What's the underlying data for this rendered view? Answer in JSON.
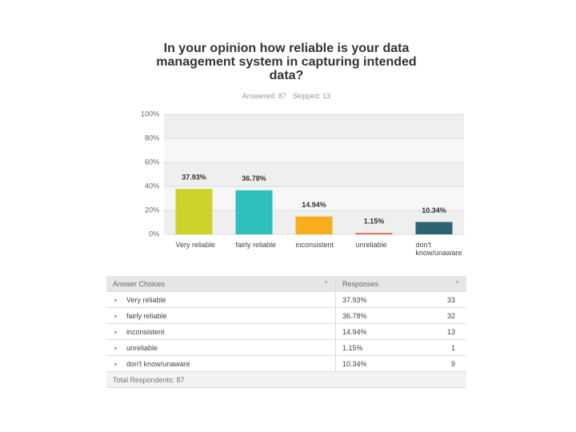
{
  "chart_data": {
    "type": "bar",
    "title": "In your opinion how reliable is your data management system in capturing intended data?",
    "subtitle": [
      "Answered: 87",
      "Skipped: 13"
    ],
    "categories": [
      "Very reliable",
      "fairly reliable",
      "inconsistent",
      "unreliable",
      "don't know/unaware"
    ],
    "values": [
      37.93,
      36.78,
      14.94,
      1.15,
      10.34
    ],
    "value_labels": [
      "37.93%",
      "36.78%",
      "14.94%",
      "1.15%",
      "10.34%"
    ],
    "colors": [
      "#cdd22b",
      "#2fbfbf",
      "#f6ae1f",
      "#e0634a",
      "#2d6272"
    ],
    "ylim": [
      0,
      100
    ],
    "yticks": [
      {
        "value": 0,
        "label": "0%"
      },
      {
        "value": 20,
        "label": "20%"
      },
      {
        "value": 40,
        "label": "40%"
      },
      {
        "value": 60,
        "label": "60%"
      },
      {
        "value": 80,
        "label": "80%"
      },
      {
        "value": 100,
        "label": "100%"
      }
    ],
    "grid": true
  },
  "table": {
    "header": [
      "Answer Choices",
      "Responses"
    ],
    "rows": [
      [
        "Very reliable",
        "37.93%",
        33
      ],
      [
        "fairly reliable",
        "36.78%",
        32
      ],
      [
        "inconsistent",
        "14.94%",
        13
      ],
      [
        "unreliable",
        "1.15%",
        1
      ],
      [
        "don't know/unaware",
        "10.34%",
        9
      ]
    ],
    "footer": "Total Respondents: 87"
  }
}
